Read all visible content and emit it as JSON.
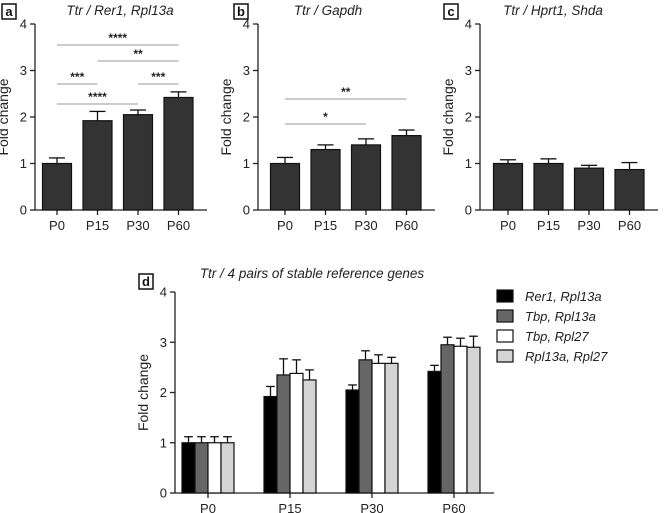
{
  "chart_data": [
    {
      "panel": "a",
      "type": "bar",
      "title": "Ttr / Rer1, Rpl13a",
      "ylabel": "Fold change",
      "xlabel": "",
      "ylim": [
        0,
        4
      ],
      "yticks": [
        0,
        1,
        2,
        3,
        4
      ],
      "categories": [
        "P0",
        "P15",
        "P30",
        "P60"
      ],
      "values": [
        1.0,
        1.92,
        2.05,
        2.42
      ],
      "errors": [
        0.12,
        0.2,
        0.1,
        0.12
      ],
      "bar_color": "#333333",
      "significance": [
        {
          "from": 0,
          "to": 1,
          "label": "***"
        },
        {
          "from": 0,
          "to": 2,
          "label": "****"
        },
        {
          "from": 0,
          "to": 3,
          "label": "****"
        },
        {
          "from": 1,
          "to": 3,
          "label": "**"
        },
        {
          "from": 2,
          "to": 3,
          "label": "***"
        }
      ]
    },
    {
      "panel": "b",
      "type": "bar",
      "title": "Ttr / Gapdh",
      "ylabel": "Fold change",
      "xlabel": "",
      "ylim": [
        0,
        4
      ],
      "yticks": [
        0,
        1,
        2,
        3,
        4
      ],
      "categories": [
        "P0",
        "P15",
        "P30",
        "P60"
      ],
      "values": [
        1.0,
        1.3,
        1.4,
        1.6
      ],
      "errors": [
        0.13,
        0.1,
        0.13,
        0.12
      ],
      "bar_color": "#333333",
      "significance": [
        {
          "from": 0,
          "to": 2,
          "label": "*"
        },
        {
          "from": 0,
          "to": 3,
          "label": "**"
        }
      ]
    },
    {
      "panel": "c",
      "type": "bar",
      "title": "Ttr / Hprt1, Shda",
      "ylabel": "Fold change",
      "xlabel": "",
      "ylim": [
        0,
        4
      ],
      "yticks": [
        0,
        1,
        2,
        3,
        4
      ],
      "categories": [
        "P0",
        "P15",
        "P30",
        "P60"
      ],
      "values": [
        1.0,
        1.0,
        0.9,
        0.87
      ],
      "errors": [
        0.08,
        0.1,
        0.06,
        0.15
      ],
      "bar_color": "#333333",
      "significance": []
    },
    {
      "panel": "d",
      "type": "bar",
      "title": "Ttr / 4 pairs of stable reference genes",
      "ylabel": "Fold change",
      "xlabel": "",
      "ylim": [
        0,
        4
      ],
      "yticks": [
        0,
        1,
        2,
        3,
        4
      ],
      "categories": [
        "P0",
        "P15",
        "P30",
        "P60"
      ],
      "legend_position": "right",
      "series": [
        {
          "name": "Rer1, Rpl13a",
          "color": "#000000",
          "values": [
            1.0,
            1.92,
            2.05,
            2.42
          ],
          "errors": [
            0.12,
            0.2,
            0.1,
            0.12
          ]
        },
        {
          "name": "Tbp, Rpl13a",
          "color": "#666666",
          "values": [
            1.0,
            2.35,
            2.65,
            2.95
          ],
          "errors": [
            0.12,
            0.32,
            0.18,
            0.15
          ]
        },
        {
          "name": "Tbp, Rpl27",
          "color": "#ffffff",
          "values": [
            1.0,
            2.38,
            2.58,
            2.92
          ],
          "errors": [
            0.12,
            0.27,
            0.17,
            0.16
          ]
        },
        {
          "name": "Rpl13a, Rpl27",
          "color": "#d4d4d4",
          "values": [
            1.0,
            2.25,
            2.58,
            2.9
          ],
          "errors": [
            0.12,
            0.2,
            0.12,
            0.22
          ]
        }
      ]
    }
  ]
}
